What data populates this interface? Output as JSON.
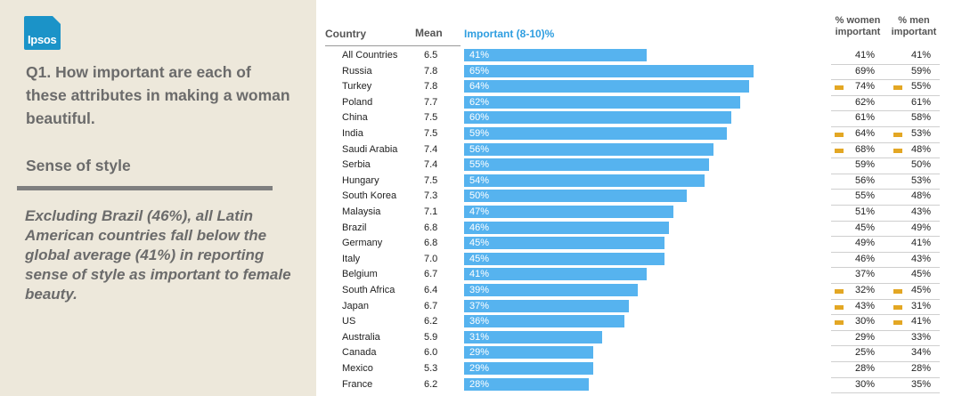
{
  "brand": {
    "logo_text": "Ipsos",
    "color": "#1b93c8"
  },
  "panel": {
    "question": "Q1. How important are each of these attributes in making a woman beautiful.",
    "subtitle": "Sense of style",
    "note": "Excluding Brazil (46%), all Latin American countries fall below the global average (41%) in reporting sense of style as important to female beauty."
  },
  "headers": {
    "country": "Country",
    "mean": "Mean",
    "important": "Important (8-10)%",
    "women": "% women important",
    "men": "% men important"
  },
  "colors": {
    "bar": "#56b3ef",
    "flag": "#e3a724"
  },
  "chart_data": {
    "type": "bar",
    "orientation": "horizontal",
    "unit": "%",
    "categories": [
      "All Countries",
      "Russia",
      "Turkey",
      "Poland",
      "China",
      "India",
      "Saudi Arabia",
      "Serbia",
      "Hungary",
      "South Korea",
      "Malaysia",
      "Brazil",
      "Germany",
      "Italy",
      "Belgium",
      "South Africa",
      "Japan",
      "US",
      "Australia",
      "Canada",
      "Mexico",
      "France"
    ],
    "mean": [
      "6.5",
      "7.8",
      "7.8",
      "7.7",
      "7.5",
      "7.5",
      "7.4",
      "7.4",
      "7.5",
      "7.3",
      "7.1",
      "6.8",
      "6.8",
      "7.0",
      "6.7",
      "6.4",
      "6.7",
      "6.2",
      "5.9",
      "6.0",
      "5.3",
      "6.2"
    ],
    "values": [
      41,
      65,
      64,
      62,
      60,
      59,
      56,
      55,
      54,
      50,
      47,
      46,
      45,
      45,
      41,
      39,
      37,
      36,
      31,
      29,
      29,
      28
    ],
    "women_important": [
      41,
      69,
      74,
      62,
      61,
      64,
      68,
      59,
      56,
      55,
      51,
      45,
      49,
      46,
      37,
      32,
      43,
      30,
      29,
      25,
      28,
      30
    ],
    "men_important": [
      41,
      59,
      55,
      61,
      58,
      53,
      48,
      50,
      53,
      48,
      43,
      49,
      41,
      43,
      45,
      45,
      31,
      41,
      33,
      34,
      28,
      35
    ],
    "women_flag": [
      false,
      false,
      true,
      false,
      false,
      true,
      true,
      false,
      false,
      false,
      false,
      false,
      false,
      false,
      false,
      true,
      true,
      true,
      false,
      false,
      false,
      false
    ],
    "men_flag": [
      false,
      false,
      true,
      false,
      false,
      true,
      true,
      false,
      false,
      false,
      false,
      false,
      false,
      false,
      false,
      true,
      true,
      true,
      false,
      false,
      false,
      false
    ]
  }
}
